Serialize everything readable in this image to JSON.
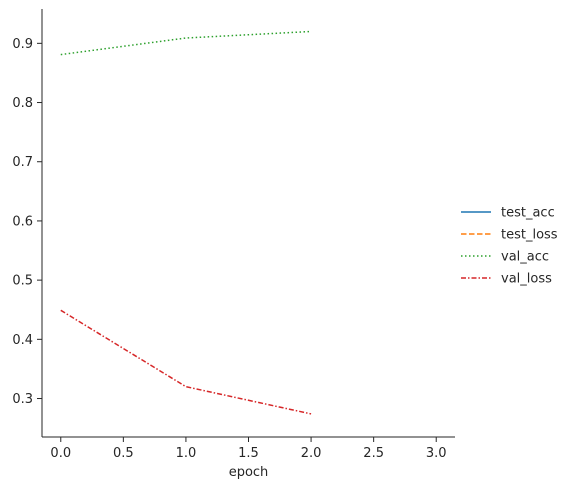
{
  "chart_data": {
    "type": "line",
    "title": "",
    "xlabel": "epoch",
    "ylabel": "",
    "xlim": [
      -0.15,
      3.15
    ],
    "ylim": [
      0.235,
      0.958
    ],
    "xticks": [
      0.0,
      0.5,
      1.0,
      1.5,
      2.0,
      2.5,
      3.0
    ],
    "xtick_labels": [
      "0.0",
      "0.5",
      "1.0",
      "1.5",
      "2.0",
      "2.5",
      "3.0"
    ],
    "yticks": [
      0.3,
      0.4,
      0.5,
      0.6,
      0.7,
      0.8,
      0.9
    ],
    "ytick_labels": [
      "0.3",
      "0.4",
      "0.5",
      "0.6",
      "0.7",
      "0.8",
      "0.9"
    ],
    "grid": false,
    "legend_position": "right",
    "series": [
      {
        "name": "test_acc",
        "color": "#1f77b4",
        "dash": "solid",
        "x": [],
        "y": []
      },
      {
        "name": "test_loss",
        "color": "#ff7f0e",
        "dash": "dashed",
        "x": [],
        "y": []
      },
      {
        "name": "val_acc",
        "color": "#2ca02c",
        "dash": "dotted",
        "x": [
          0,
          1,
          2
        ],
        "y": [
          0.881,
          0.909,
          0.92
        ]
      },
      {
        "name": "val_loss",
        "color": "#d62728",
        "dash": "dashdot",
        "x": [
          0,
          1,
          2
        ],
        "y": [
          0.449,
          0.32,
          0.274
        ]
      }
    ]
  }
}
